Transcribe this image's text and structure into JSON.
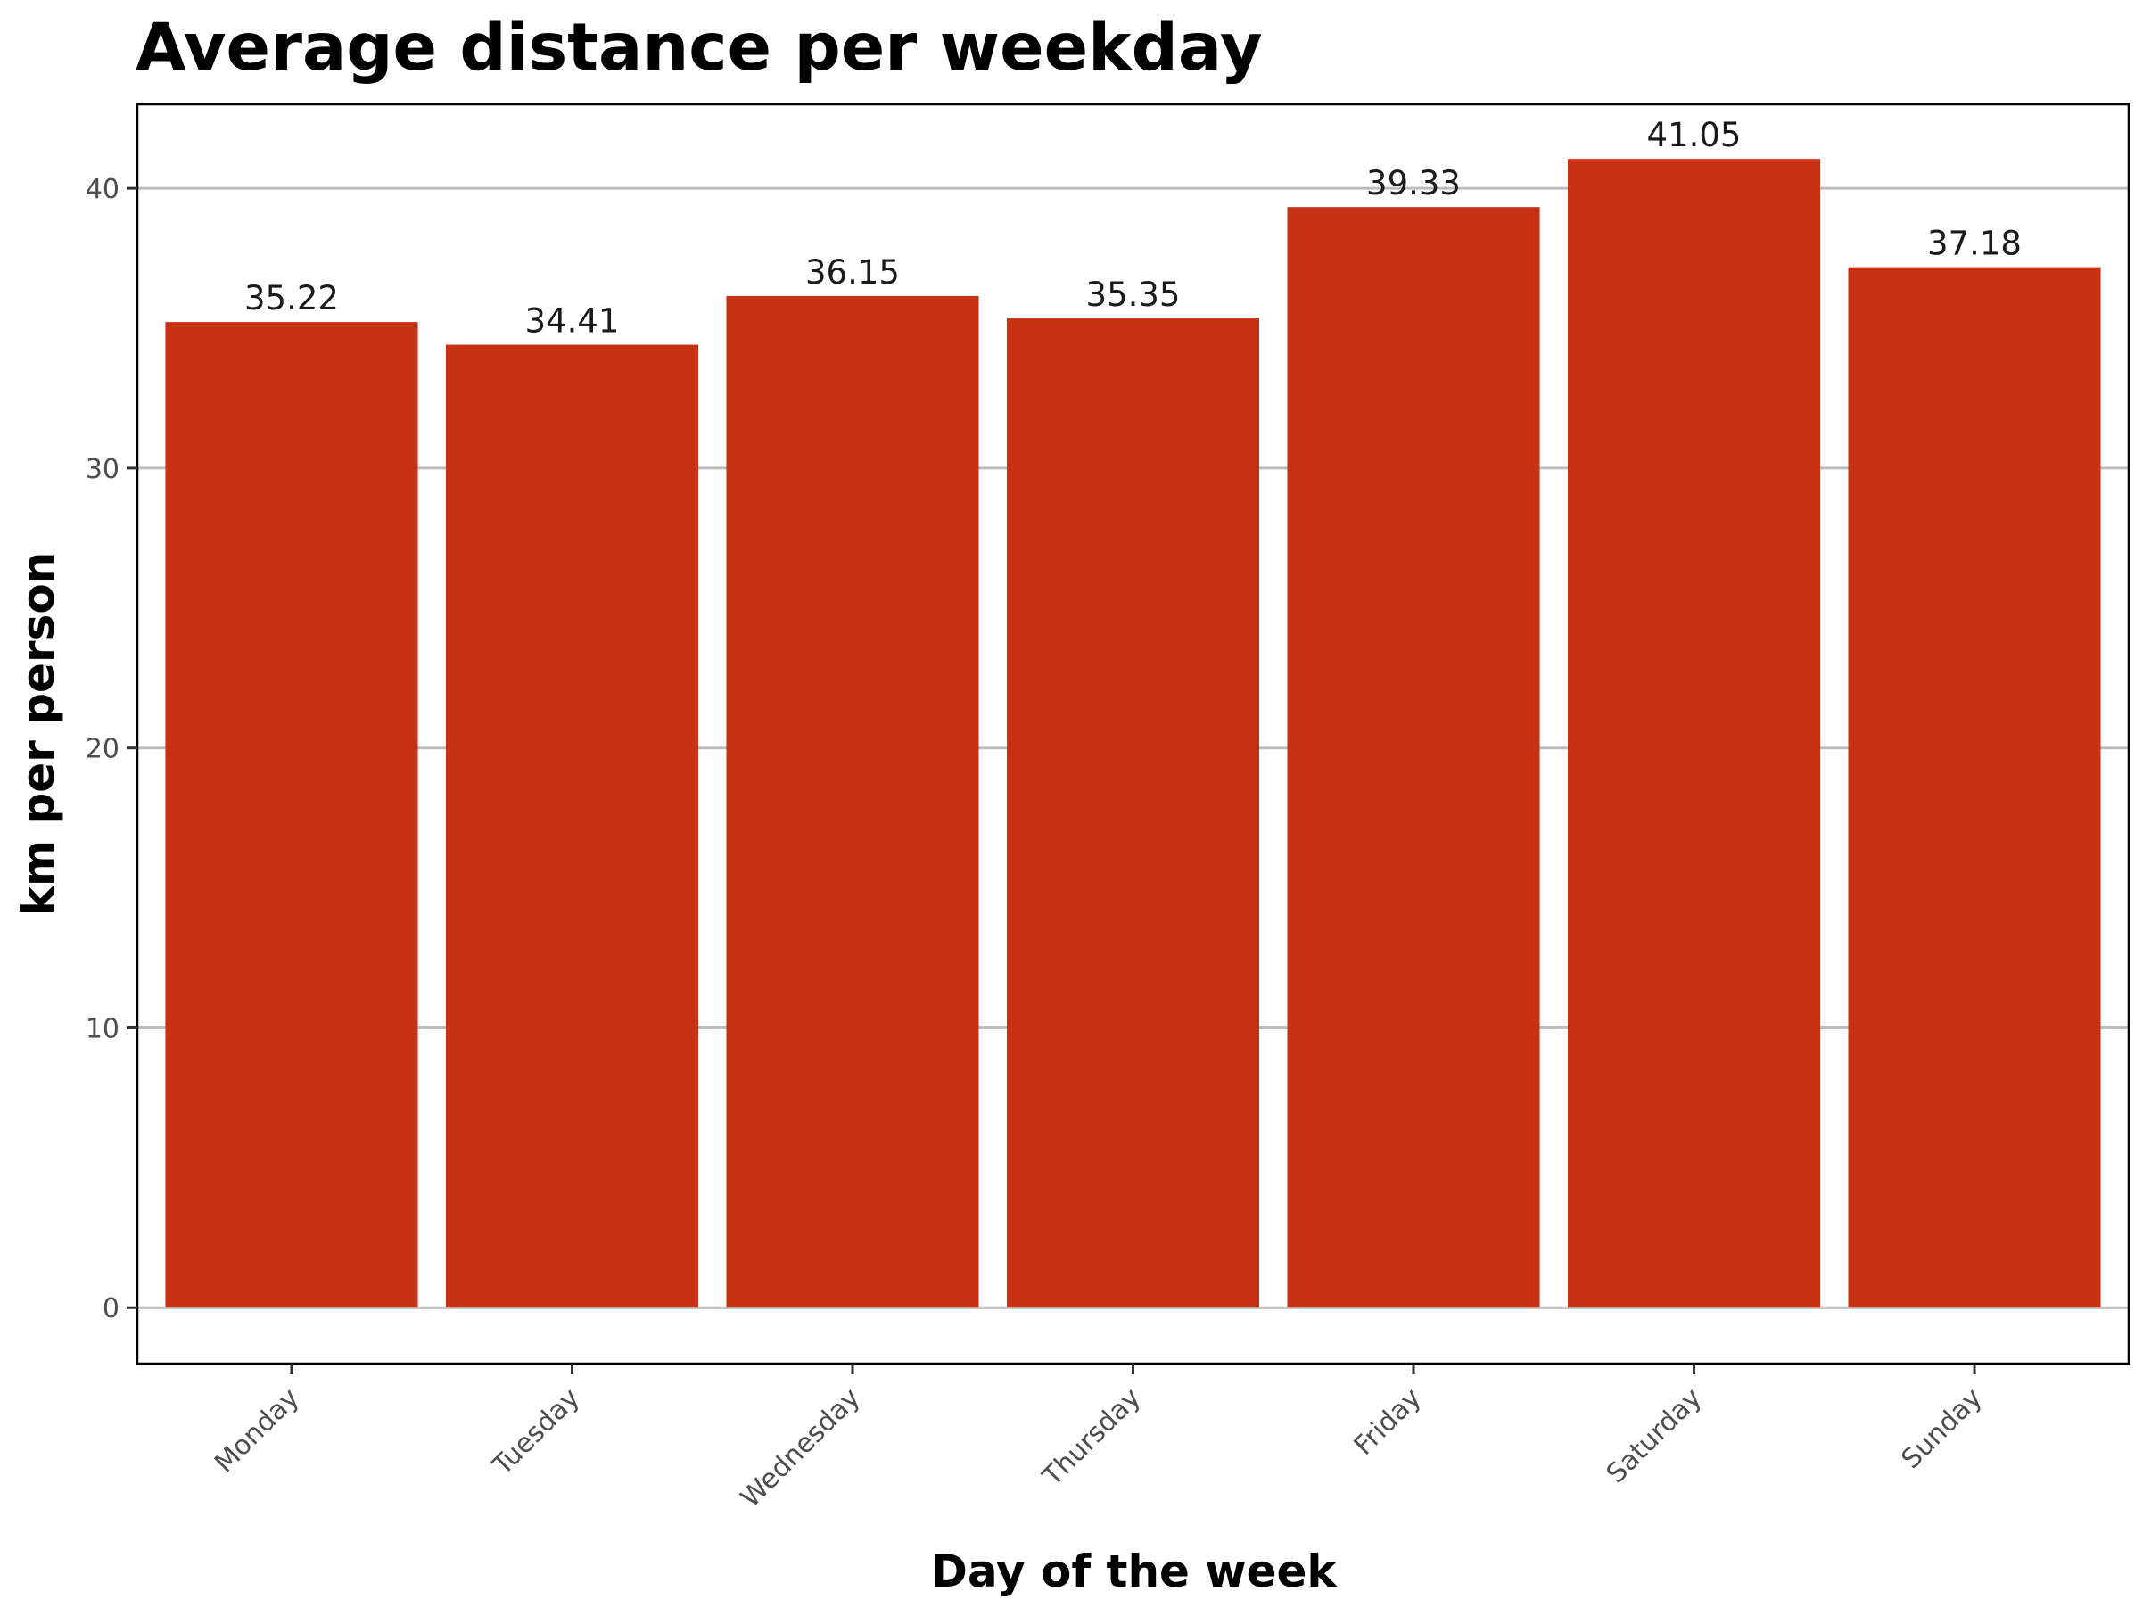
{
  "chart_data": {
    "type": "bar",
    "title": "Average distance per weekday",
    "xlabel": "Day of the week",
    "ylabel": "km per person",
    "categories": [
      "Monday",
      "Tuesday",
      "Wednesday",
      "Thursday",
      "Friday",
      "Saturday",
      "Sunday"
    ],
    "values": [
      35.22,
      34.41,
      36.15,
      35.35,
      39.33,
      41.05,
      37.18
    ],
    "data_labels": [
      "35.22",
      "34.41",
      "36.15",
      "35.35",
      "39.33",
      "41.05",
      "37.18"
    ],
    "yticks": [
      0,
      10,
      20,
      30,
      40
    ],
    "ylim": [
      -2,
      43
    ],
    "grid": true,
    "legend": "none",
    "bar_color": "#c83214"
  }
}
